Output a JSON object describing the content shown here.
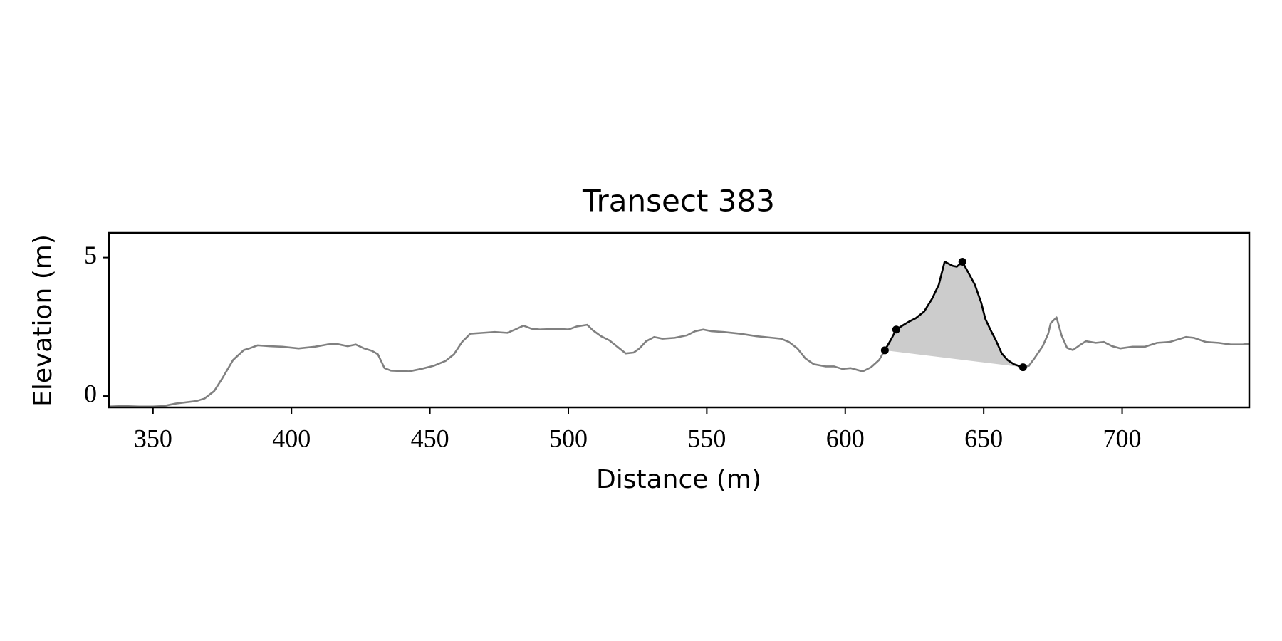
{
  "chart_data": {
    "type": "line",
    "title": "Transect 383",
    "xlabel": "Distance (m)",
    "ylabel": "Elevation (m)",
    "xlim": [
      334.1,
      745.9
    ],
    "ylim": [
      -0.41,
      5.89
    ],
    "xticks": [
      350,
      400,
      450,
      500,
      550,
      600,
      650,
      700
    ],
    "yticks": [
      0,
      5
    ],
    "series": [
      {
        "color": "#808080",
        "x": [
          334.1,
          339.1,
          345.0,
          350.0,
          353.8,
          358.3,
          365.7,
          368.6,
          372.1,
          375.1,
          378.9,
          382.8,
          384.8,
          387.8,
          392.2,
          396.7,
          402.6,
          408.5,
          412.9,
          415.9,
          420.3,
          423.2,
          426.2,
          429.1,
          431.2,
          433.6,
          435.9,
          442.4,
          446.9,
          451.3,
          455.7,
          458.7,
          461.6,
          464.6,
          469.0,
          473.4,
          477.9,
          480.8,
          483.8,
          486.7,
          489.7,
          495.6,
          500.0,
          503.0,
          506.8,
          508.9,
          511.8,
          514.8,
          517.7,
          520.7,
          523.6,
          525.7,
          528.1,
          531.0,
          534.0,
          538.4,
          542.8,
          545.8,
          548.7,
          551.7,
          556.1,
          562.0,
          567.9,
          573.8,
          576.8,
          579.7,
          582.7,
          585.6,
          588.6,
          593.0,
          596.0,
          598.9,
          601.9,
          606.3,
          609.3,
          612.2,
          614.3,
          616.7,
          618.4,
          621.1,
          623.1,
          625.5,
          628.5,
          631.4,
          633.8,
          635.9,
          638.8,
          640.3,
          642.3,
          644.7,
          646.8,
          649.1,
          650.6,
          652.7,
          654.4,
          656.5,
          658.6,
          660.9,
          664.2,
          666.3,
          668.3,
          671.3,
          673.3,
          674.2,
          676.3,
          678.1,
          680.1,
          682.2,
          684.6,
          686.9,
          690.5,
          693.4,
          696.4,
          699.3,
          703.8,
          708.2,
          712.6,
          717.1,
          723.0,
          725.9,
          730.3,
          734.8,
          739.2,
          743.6,
          745.9
        ],
        "values": [
          -0.38,
          -0.36,
          -0.38,
          -0.38,
          -0.36,
          -0.27,
          -0.18,
          -0.09,
          0.18,
          0.65,
          1.3,
          1.66,
          1.72,
          1.83,
          1.8,
          1.78,
          1.72,
          1.78,
          1.86,
          1.89,
          1.8,
          1.86,
          1.72,
          1.63,
          1.51,
          1.01,
          0.92,
          0.89,
          0.98,
          1.09,
          1.27,
          1.51,
          1.95,
          2.25,
          2.28,
          2.31,
          2.28,
          2.4,
          2.54,
          2.43,
          2.4,
          2.43,
          2.4,
          2.51,
          2.57,
          2.37,
          2.16,
          2.01,
          1.78,
          1.54,
          1.57,
          1.72,
          1.98,
          2.13,
          2.07,
          2.1,
          2.19,
          2.34,
          2.4,
          2.34,
          2.31,
          2.25,
          2.16,
          2.1,
          2.07,
          1.95,
          1.72,
          1.36,
          1.15,
          1.07,
          1.07,
          0.98,
          1.01,
          0.89,
          1.04,
          1.3,
          1.65,
          2.07,
          2.4,
          2.57,
          2.69,
          2.81,
          3.05,
          3.52,
          4.02,
          4.85,
          4.7,
          4.67,
          4.85,
          4.41,
          4.02,
          3.37,
          2.78,
          2.34,
          2.01,
          1.54,
          1.3,
          1.15,
          1.04,
          1.09,
          1.36,
          1.8,
          2.25,
          2.63,
          2.84,
          2.19,
          1.74,
          1.66,
          1.83,
          1.98,
          1.92,
          1.95,
          1.8,
          1.72,
          1.78,
          1.78,
          1.92,
          1.95,
          2.13,
          2.1,
          1.95,
          1.92,
          1.86,
          1.86,
          1.89
        ]
      },
      {
        "color": "#000000",
        "fill": "#cccccc",
        "x": [
          614.3,
          616.7,
          618.4,
          621.1,
          623.1,
          625.5,
          628.5,
          631.4,
          633.8,
          635.9,
          638.8,
          640.3,
          642.3,
          644.7,
          646.8,
          649.1,
          650.6,
          652.7,
          654.4,
          656.5,
          658.6,
          660.9,
          664.2
        ],
        "values": [
          1.65,
          2.07,
          2.4,
          2.57,
          2.69,
          2.81,
          3.05,
          3.52,
          4.02,
          4.85,
          4.7,
          4.67,
          4.85,
          4.41,
          4.02,
          3.37,
          2.78,
          2.34,
          2.01,
          1.54,
          1.3,
          1.15,
          1.04
        ]
      }
    ],
    "points": {
      "color": "#000000",
      "x": [
        614.3,
        618.4,
        642.3,
        664.2
      ],
      "values": [
        1.65,
        2.4,
        4.85,
        1.04
      ]
    }
  }
}
